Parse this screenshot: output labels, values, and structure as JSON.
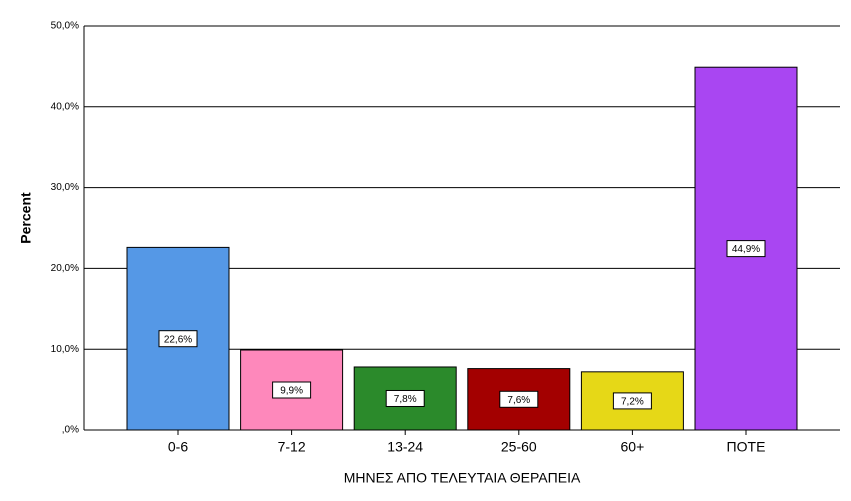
{
  "chart_data": {
    "type": "bar",
    "x_label": "ΜΗΝΕΣ ΑΠΟ ΤΕΛΕΥΤΑΙΑ ΘΕΡΑΠΕΙΑ",
    "y_label": "Percent",
    "categories": [
      "0-6",
      "7-12",
      "13-24",
      "25-60",
      "60+",
      "ΠΟΤΕ"
    ],
    "values": [
      22.6,
      9.9,
      7.8,
      7.6,
      7.2,
      44.9
    ],
    "value_labels": [
      "22,6%",
      "9,9%",
      "7,8%",
      "7,6%",
      "7,2%",
      "44,9%"
    ],
    "colors": [
      "#5598e6",
      "#fe88bb",
      "#2b8a2b",
      "#a30000",
      "#e6d817",
      "#a946f2"
    ],
    "ylim": [
      0,
      50
    ],
    "yticks": [
      {
        "value": 0,
        "label": ",0%"
      },
      {
        "value": 10,
        "label": "10,0%"
      },
      {
        "value": 20,
        "label": "20,0%"
      },
      {
        "value": 30,
        "label": "30,0%"
      },
      {
        "value": 40,
        "label": "40,0%"
      },
      {
        "value": 50,
        "label": "50,0%"
      }
    ],
    "grid": true
  }
}
